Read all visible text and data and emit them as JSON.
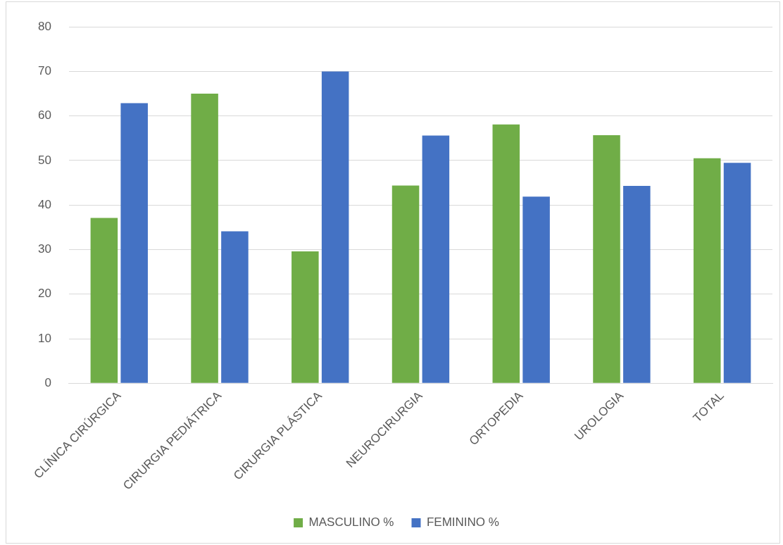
{
  "chart_data": {
    "type": "bar",
    "categories": [
      "CLÍNICA CIRÚRGICA",
      "CIRURGIA PEDIÁTRICA",
      "CIRURGIA PLÁSTICA",
      "NEUROCIRURGIA",
      "ORTOPEDIA",
      "UROLOGIA",
      "TOTAL"
    ],
    "series": [
      {
        "name": "MASCULINO %",
        "color": "#70ad47",
        "values": [
          37.1,
          65.0,
          29.6,
          44.4,
          58.1,
          55.7,
          50.5
        ]
      },
      {
        "name": "FEMININO %",
        "color": "#4472c4",
        "values": [
          62.9,
          34.1,
          70.0,
          55.6,
          41.9,
          44.3,
          49.5
        ]
      }
    ],
    "ylim": [
      0,
      80
    ],
    "yticks": [
      0,
      10,
      20,
      30,
      40,
      50,
      60,
      70,
      80
    ],
    "grid": "y",
    "legend": "bottom"
  }
}
